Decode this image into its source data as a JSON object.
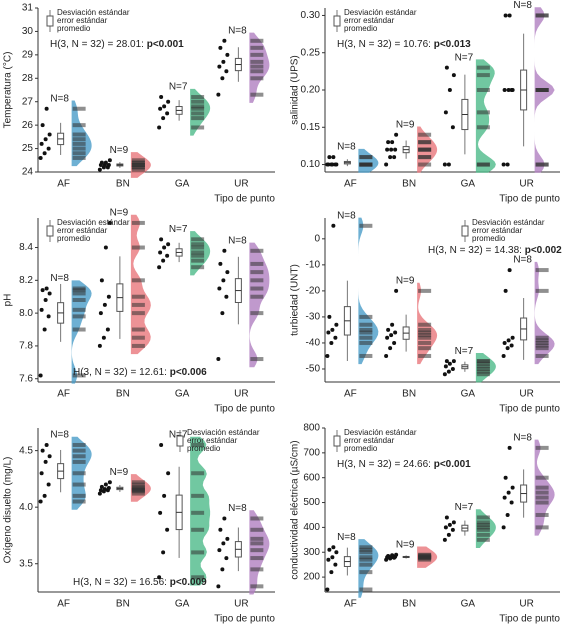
{
  "chart_data": [
    {
      "type": "raincloud",
      "ylabel": "Temperatura (°C)",
      "xlabel": "Tipo de punto",
      "categories": [
        "AF",
        "BN",
        "GA",
        "UR"
      ],
      "colors": [
        "#4a9cc8",
        "#e8777c",
        "#4dba8a",
        "#b07fc0"
      ],
      "n_labels": [
        "N=8",
        "N=9",
        "N=7",
        "N=8"
      ],
      "values": [
        [
          24.6,
          24.8,
          25.0,
          25.2,
          25.4,
          25.6,
          26.0,
          26.7
        ],
        [
          24.1,
          24.2,
          24.2,
          24.3,
          24.3,
          24.3,
          24.4,
          24.4,
          24.5
        ],
        [
          25.9,
          26.3,
          26.5,
          26.7,
          26.8,
          27.0,
          27.2
        ],
        [
          27.3,
          28.0,
          28.3,
          28.5,
          28.7,
          29.0,
          29.3,
          29.6
        ]
      ],
      "ylim": [
        24,
        31
      ],
      "yticks": [
        24,
        25,
        26,
        27,
        28,
        29,
        30,
        31
      ],
      "stat_text": "H(3, N = 32) = 28.01: ",
      "p_text": "p<0.001",
      "legend": [
        "Desviación estándar",
        "error estándar",
        "promedio"
      ],
      "legend_position": "upper left"
    },
    {
      "type": "raincloud",
      "ylabel": "salinidad (UPS)",
      "xlabel": "Tipo de punto",
      "categories": [
        "AF",
        "BN",
        "GA",
        "UR"
      ],
      "colors": [
        "#4a9cc8",
        "#e8777c",
        "#4dba8a",
        "#b07fc0"
      ],
      "n_labels": [
        "N=8",
        "N=9",
        "N=7",
        "N=8"
      ],
      "values": [
        [
          0.1,
          0.1,
          0.1,
          0.1,
          0.1,
          0.1,
          0.11,
          0.11
        ],
        [
          0.1,
          0.11,
          0.11,
          0.12,
          0.12,
          0.12,
          0.13,
          0.13,
          0.14
        ],
        [
          0.1,
          0.1,
          0.15,
          0.17,
          0.2,
          0.22,
          0.23
        ],
        [
          0.1,
          0.1,
          0.2,
          0.2,
          0.2,
          0.2,
          0.3,
          0.3
        ]
      ],
      "ylim": [
        0.09,
        0.31
      ],
      "yticks": [
        {
          "value": 0.1,
          "label": "0.10"
        },
        0.15,
        {
          "value": 0.2,
          "label": "0.20"
        },
        0.25,
        {
          "value": 0.3,
          "label": "0.30"
        }
      ],
      "stat_text": "H(3, N = 32) = 10.76: ",
      "p_text": "p<0.013",
      "legend": [
        "Desviación estándar",
        "error estándar",
        "promedio"
      ],
      "legend_position": "upper left"
    },
    {
      "type": "raincloud",
      "ylabel": "pH",
      "xlabel": "Tipo de punto",
      "categories": [
        "AF",
        "BN",
        "GA",
        "UR"
      ],
      "colors": [
        "#4a9cc8",
        "#e8777c",
        "#4dba8a",
        "#b07fc0"
      ],
      "n_labels": [
        "N=8",
        "N=9",
        "N=7",
        "N=8"
      ],
      "values": [
        [
          7.62,
          7.9,
          7.98,
          8.02,
          8.08,
          8.12,
          8.14,
          8.15
        ],
        [
          7.8,
          7.85,
          7.9,
          8.0,
          8.05,
          8.1,
          8.2,
          8.4,
          8.55
        ],
        [
          8.28,
          8.32,
          8.35,
          8.37,
          8.4,
          8.42,
          8.45
        ],
        [
          7.72,
          8.0,
          8.1,
          8.15,
          8.2,
          8.25,
          8.3,
          8.38
        ]
      ],
      "ylim": [
        7.58,
        8.58
      ],
      "yticks": [
        7.6,
        7.8,
        {
          "value": 8,
          "label": "8.0"
        },
        8.2,
        8.4
      ],
      "stat_text": "H(3, N = 32) = 12.61: ",
      "p_text": "p<0.006",
      "legend": [
        "Desviación estándar",
        "error estándar",
        "promedio"
      ],
      "legend_position": "upper left"
    },
    {
      "type": "raincloud",
      "ylabel": "turbiedad (UNT)",
      "xlabel": "Tipo de punto",
      "categories": [
        "AF",
        "BN",
        "GA",
        "UR"
      ],
      "colors": [
        "#4a9cc8",
        "#e8777c",
        "#4dba8a",
        "#b07fc0"
      ],
      "n_labels": [
        "N=8",
        "N=9",
        "N=7",
        "N=8"
      ],
      "values": [
        [
          -45,
          -40,
          -38,
          -36,
          -35,
          -33,
          -30,
          5
        ],
        [
          -45,
          -42,
          -40,
          -38,
          -37,
          -36,
          -35,
          -33,
          -20
        ],
        [
          -52,
          -51,
          -50,
          -49,
          -48,
          -47,
          -47
        ],
        [
          -45,
          -42,
          -41,
          -40,
          -39,
          -38,
          -20,
          -12
        ]
      ],
      "ylim": [
        -55,
        8
      ],
      "yticks": [
        -50,
        -40,
        -30,
        -20,
        -10,
        0
      ],
      "stat_text": "H(3, N = 32) = 14.38: ",
      "p_text": "p<0.002",
      "legend": [
        "Desviación estándar",
        "error estándar",
        "promedio"
      ],
      "legend_position": "upper right"
    },
    {
      "type": "raincloud",
      "ylabel": "Oxígeno disuelto (mg/L)",
      "xlabel": "Tipo de punto",
      "categories": [
        "AF",
        "BN",
        "GA",
        "UR"
      ],
      "colors": [
        "#4a9cc8",
        "#e8777c",
        "#4dba8a",
        "#b07fc0"
      ],
      "n_labels": [
        "N=8",
        "N=9",
        "N=7",
        "N=8"
      ],
      "values": [
        [
          4.05,
          4.1,
          4.2,
          4.3,
          4.4,
          4.45,
          4.5,
          4.55
        ],
        [
          4.12,
          4.14,
          4.15,
          4.15,
          4.16,
          4.17,
          4.18,
          4.2,
          4.22
        ],
        [
          3.38,
          3.6,
          3.8,
          3.95,
          4.1,
          4.3,
          4.55
        ],
        [
          3.3,
          3.45,
          3.55,
          3.62,
          3.68,
          3.72,
          3.8,
          3.9
        ]
      ],
      "ylim": [
        3.25,
        4.7
      ],
      "yticks": [
        3.5,
        {
          "value": 4,
          "label": "4.0"
        },
        4.5
      ],
      "stat_text": "H(3, N = 32) = 16.56: ",
      "p_text": "p<0.009",
      "legend": [
        "Desviación estándar",
        "error estándar",
        "promedio"
      ],
      "legend_position": "upper right"
    },
    {
      "type": "raincloud",
      "ylabel": "conductividad eléctrica (µS/cm)",
      "xlabel": "Tipo de punto",
      "categories": [
        "AF",
        "BN",
        "GA",
        "UR"
      ],
      "colors": [
        "#4a9cc8",
        "#e8777c",
        "#4dba8a",
        "#b07fc0"
      ],
      "n_labels": [
        "N=8",
        "N=9",
        "N=7",
        "N=8"
      ],
      "values": [
        [
          150,
          220,
          250,
          270,
          280,
          300,
          310,
          320
        ],
        [
          270,
          275,
          278,
          280,
          280,
          282,
          285,
          288,
          290
        ],
        [
          350,
          370,
          390,
          400,
          410,
          420,
          440
        ],
        [
          400,
          450,
          500,
          520,
          540,
          560,
          600,
          720
        ]
      ],
      "ylim": [
        140,
        800
      ],
      "yticks": [
        200,
        300,
        400,
        500,
        600,
        700,
        800
      ],
      "stat_text": "H(3, N = 32) = 24.66: ",
      "p_text": "p<0.001",
      "legend": [
        "Desviación estándar",
        "error estándar",
        "promedio"
      ],
      "legend_position": "upper left"
    }
  ]
}
